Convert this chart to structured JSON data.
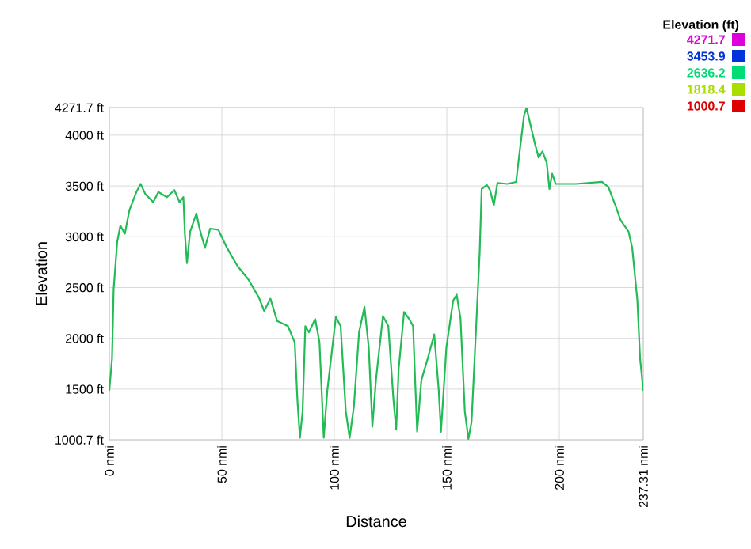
{
  "chart_data": {
    "type": "line",
    "xlabel": "Distance",
    "ylabel": "Elevation",
    "clabel": "Elevation (ft)",
    "xlim": [
      0,
      237.31
    ],
    "ylim": [
      1000.7,
      4271.7
    ],
    "xticks": [
      {
        "value": 0,
        "label": "0 nmi"
      },
      {
        "value": 50,
        "label": "50 nmi"
      },
      {
        "value": 100,
        "label": "100 nmi"
      },
      {
        "value": 150,
        "label": "150 nmi"
      },
      {
        "value": 200,
        "label": "200 nmi"
      },
      {
        "value": 237.31,
        "label": "237.31 nmi"
      }
    ],
    "yticks": [
      {
        "value": 1000.7,
        "label": "1000.7 ft"
      },
      {
        "value": 1500,
        "label": "1500 ft"
      },
      {
        "value": 2000,
        "label": "2000 ft"
      },
      {
        "value": 2500,
        "label": "2500 ft"
      },
      {
        "value": 3000,
        "label": "3000 ft"
      },
      {
        "value": 3500,
        "label": "3500 ft"
      },
      {
        "value": 4000,
        "label": "4000 ft"
      },
      {
        "value": 4271.7,
        "label": "4271.7 ft"
      }
    ],
    "cticks": [
      4271.7,
      3453.9,
      2636.2,
      1818.4,
      1000.7
    ],
    "colors": [
      "#dd00dd",
      "#0033dd",
      "#00dd77",
      "#aadd00",
      "#dd0000"
    ],
    "grid": true,
    "series": [
      {
        "color": "#22bb55",
        "x": [
          0,
          1.2,
          1.9,
          3.5,
          4.9,
          6.9,
          8.9,
          12,
          13.9,
          16,
          19.5,
          21.8,
          25.6,
          28.9,
          31.2,
          32.9,
          33.6,
          34.5,
          35.9,
          38.7,
          40.1,
          42.5,
          44.8,
          48.4,
          52.3,
          57,
          61.8,
          66.5,
          68.8,
          71.6,
          74.6,
          79.4,
          82.4,
          83.6,
          84.7,
          85.9,
          87.1,
          88.7,
          91.5,
          93.4,
          95.3,
          96.9,
          98.8,
          100.7,
          102.8,
          105.1,
          106.8,
          108.7,
          111,
          113.4,
          115.3,
          116.9,
          118.5,
          121.6,
          124,
          126.3,
          127.5,
          128.6,
          131,
          133.3,
          135,
          136.8,
          138.7,
          141.5,
          144.4,
          146.4,
          147.4,
          149.8,
          152.8,
          154.4,
          156.1,
          158,
          159.6,
          161,
          162.7,
          164.6,
          165.5,
          167.8,
          169.2,
          170.9,
          172.5,
          176.8,
          180.8,
          182.6,
          184.3,
          185.4,
          187.3,
          189,
          190.8,
          192.5,
          194.4,
          195.6,
          196.8,
          198.4,
          207.3,
          219,
          221.8,
          224.9,
          227.3,
          230.8,
          232.4,
          234.7,
          235.9,
          237.31
        ],
        "values": [
          1490,
          1800,
          2480,
          2950,
          3110,
          3030,
          3260,
          3440,
          3520,
          3420,
          3340,
          3440,
          3390,
          3460,
          3340,
          3390,
          3020,
          2740,
          3050,
          3230,
          3080,
          2890,
          3080,
          3070,
          2890,
          2710,
          2580,
          2400,
          2270,
          2390,
          2170,
          2120,
          1960,
          1390,
          1020,
          1280,
          2120,
          2060,
          2190,
          1960,
          1020,
          1490,
          1850,
          2210,
          2120,
          1280,
          1020,
          1330,
          2060,
          2310,
          1910,
          1130,
          1590,
          2220,
          2120,
          1390,
          1100,
          1700,
          2260,
          2190,
          2120,
          1080,
          1590,
          1800,
          2040,
          1490,
          1080,
          1910,
          2370,
          2430,
          2190,
          1280,
          1010,
          1180,
          1960,
          2840,
          3470,
          3510,
          3460,
          3310,
          3530,
          3520,
          3540,
          3880,
          4190,
          4270,
          4090,
          3930,
          3780,
          3840,
          3730,
          3470,
          3620,
          3520,
          3520,
          3540,
          3490,
          3310,
          3160,
          3050,
          2890,
          2370,
          1800,
          1490
        ]
      }
    ]
  }
}
